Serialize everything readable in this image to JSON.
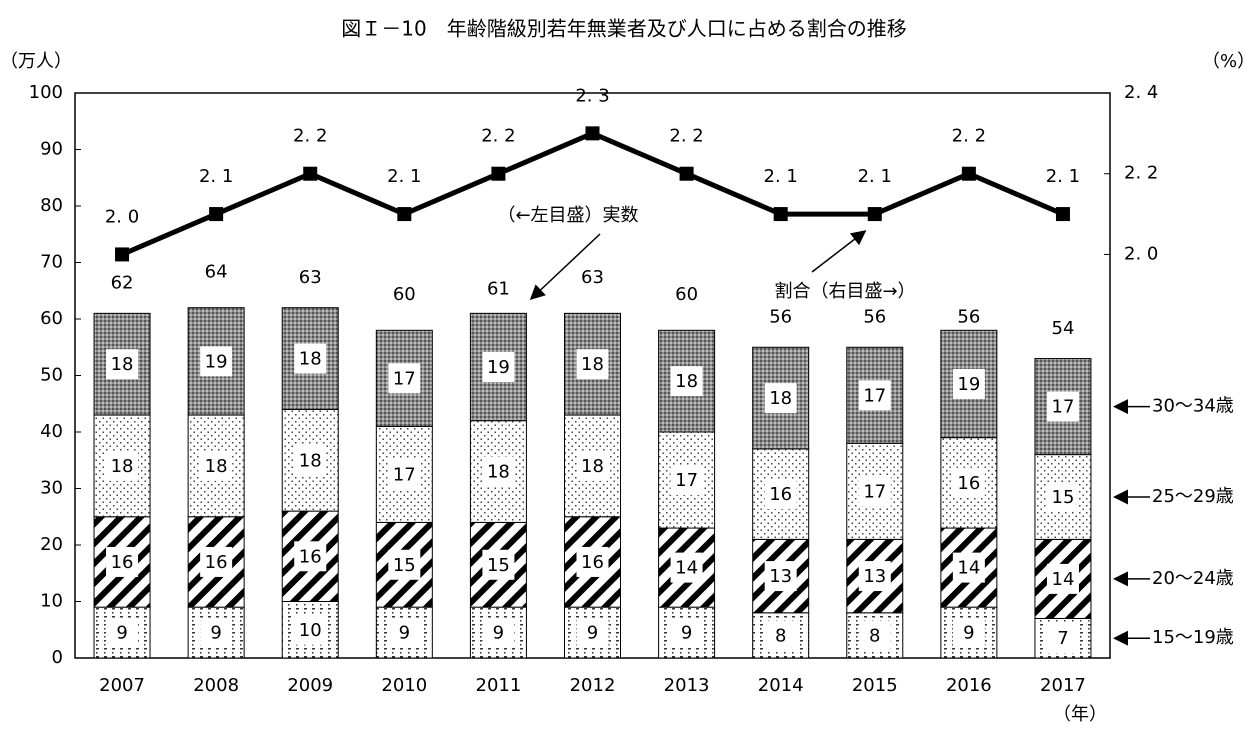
{
  "chart_data": {
    "type": "stacked-bar-line",
    "title": "図Ｉ－10　年齢階級別若年無業者及び人口に占める割合の推移",
    "y_label": "（万人）",
    "y2_label": "（%）",
    "x_label": "（年）",
    "categories": [
      "2007",
      "2008",
      "2009",
      "2010",
      "2011",
      "2012",
      "2013",
      "2014",
      "2015",
      "2016",
      "2017"
    ],
    "series": [
      {
        "name": "15～19歳",
        "pattern": "grid-dots",
        "color": "#ffffff",
        "values": [
          9,
          9,
          10,
          9,
          9,
          9,
          9,
          8,
          8,
          9,
          7
        ]
      },
      {
        "name": "20～24歳",
        "pattern": "hatch",
        "color": "#ffffff",
        "values": [
          16,
          16,
          16,
          15,
          15,
          16,
          14,
          13,
          13,
          14,
          14
        ]
      },
      {
        "name": "25～29歳",
        "pattern": "dots",
        "color": "#ffffff",
        "values": [
          18,
          18,
          18,
          17,
          18,
          18,
          17,
          16,
          17,
          16,
          15
        ]
      },
      {
        "name": "30～34歳",
        "pattern": "dense",
        "color": "#8c8c8c",
        "values": [
          18,
          19,
          18,
          17,
          19,
          18,
          18,
          18,
          17,
          19,
          17
        ]
      }
    ],
    "totals": {
      "values": [
        62,
        64,
        63,
        60,
        61,
        63,
        60,
        56,
        56,
        56,
        54
      ]
    },
    "line": {
      "axis": "y2",
      "color": "#000000",
      "values": [
        2.0,
        2.1,
        2.2,
        2.1,
        2.2,
        2.3,
        2.2,
        2.1,
        2.1,
        2.2,
        2.1
      ],
      "value_labels": [
        "2. 0",
        "2. 1",
        "2. 2",
        "2. 1",
        "2. 2",
        "2. 3",
        "2. 2",
        "2. 1",
        "2. 1",
        "2. 2",
        "2. 1"
      ]
    },
    "annotations": [
      "（←左目盛）実数",
      "割合（右目盛→）"
    ],
    "ylim": [
      0,
      100
    ],
    "yticks": [
      0,
      10,
      20,
      30,
      40,
      50,
      60,
      70,
      80,
      90,
      100
    ],
    "y2lim": [
      1.0,
      2.4
    ],
    "y2ticks": [
      {
        "value": 2.0,
        "label": "2. 0"
      },
      {
        "value": 2.2,
        "label": "2. 2"
      },
      {
        "value": 2.4,
        "label": "2. 4"
      }
    ],
    "grid": false
  }
}
